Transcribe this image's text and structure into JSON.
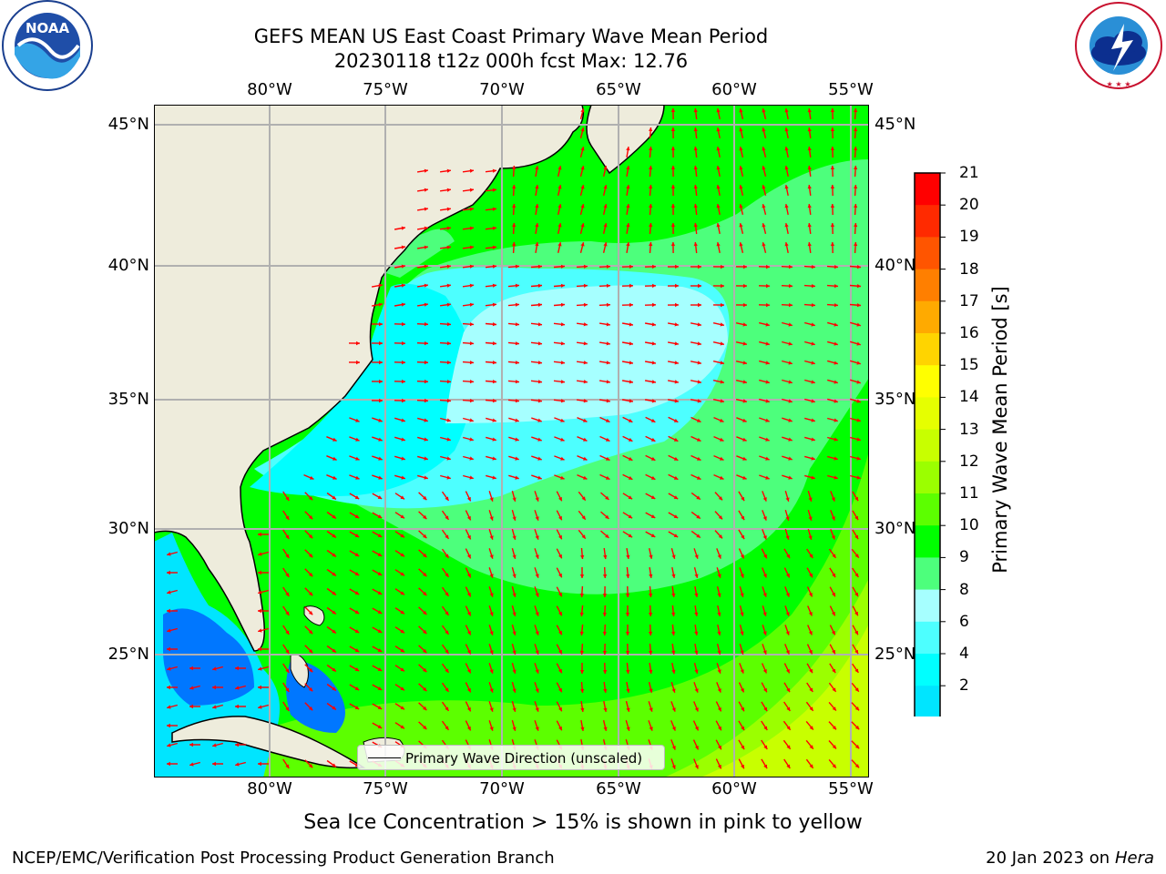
{
  "header": {
    "title_line1": "GEFS MEAN US East Coast Primary Wave Mean Period",
    "title_line2": "20230118 t12z 000h fcst   Max: 12.76"
  },
  "logos": {
    "left": "NOAA",
    "right": "NATIONAL WEATHER SERVICE"
  },
  "map": {
    "lon_ticks": [
      "80°W",
      "75°W",
      "70°W",
      "65°W",
      "60°W",
      "55°W"
    ],
    "lat_ticks": [
      "45°N",
      "40°N",
      "35°N",
      "30°N",
      "25°N"
    ],
    "legend_label": "Primary Wave Direction (unscaled)",
    "colors": {
      "land": "#eeecdc",
      "arrow": "#ff0000",
      "grid": "#b0b0b0",
      "coast": "#000000"
    }
  },
  "colorbar": {
    "title": "Primary Wave Mean Period [s]",
    "labels": [
      "21",
      "20",
      "19",
      "18",
      "17",
      "16",
      "15",
      "14",
      "13",
      "12",
      "11",
      "10",
      "9",
      "8",
      "6",
      "4",
      "2"
    ],
    "colors": [
      "#ff0000",
      "#ff2a00",
      "#ff5500",
      "#ff7f00",
      "#ffaa00",
      "#ffd400",
      "#ffff00",
      "#e6ff00",
      "#c8ff00",
      "#9bff00",
      "#5cff00",
      "#00ff00",
      "#4dff7c",
      "#a6ffff",
      "#4dffff",
      "#00ffff",
      "#00e5ff",
      "#0077ff",
      "#0000ff"
    ]
  },
  "chart_data": {
    "type": "heatmap",
    "title": "GEFS MEAN US East Coast Primary Wave Mean Period",
    "subtitle": "20230118 t12z 000h fcst   Max: 12.76",
    "x_ticks": [
      "80°W",
      "75°W",
      "70°W",
      "65°W",
      "60°W",
      "55°W"
    ],
    "y_ticks": [
      "45°N",
      "40°N",
      "35°N",
      "30°N",
      "25°N"
    ],
    "colorbar_ticks": [
      21,
      20,
      19,
      18,
      17,
      16,
      15,
      14,
      13,
      12,
      11,
      10,
      9,
      8,
      6,
      4,
      2
    ],
    "colorbar_label": "Primary Wave Mean Period [s]",
    "max_value": 12.76,
    "grid": true
  },
  "notes": {
    "sea_ice": "Sea Ice Concentration > 15% is shown in pink to yellow"
  },
  "footer": {
    "left": "NCEP/EMC/Verification Post Processing Product Generation Branch",
    "date": "20 Jan 2023 on ",
    "machine": "Hera"
  }
}
